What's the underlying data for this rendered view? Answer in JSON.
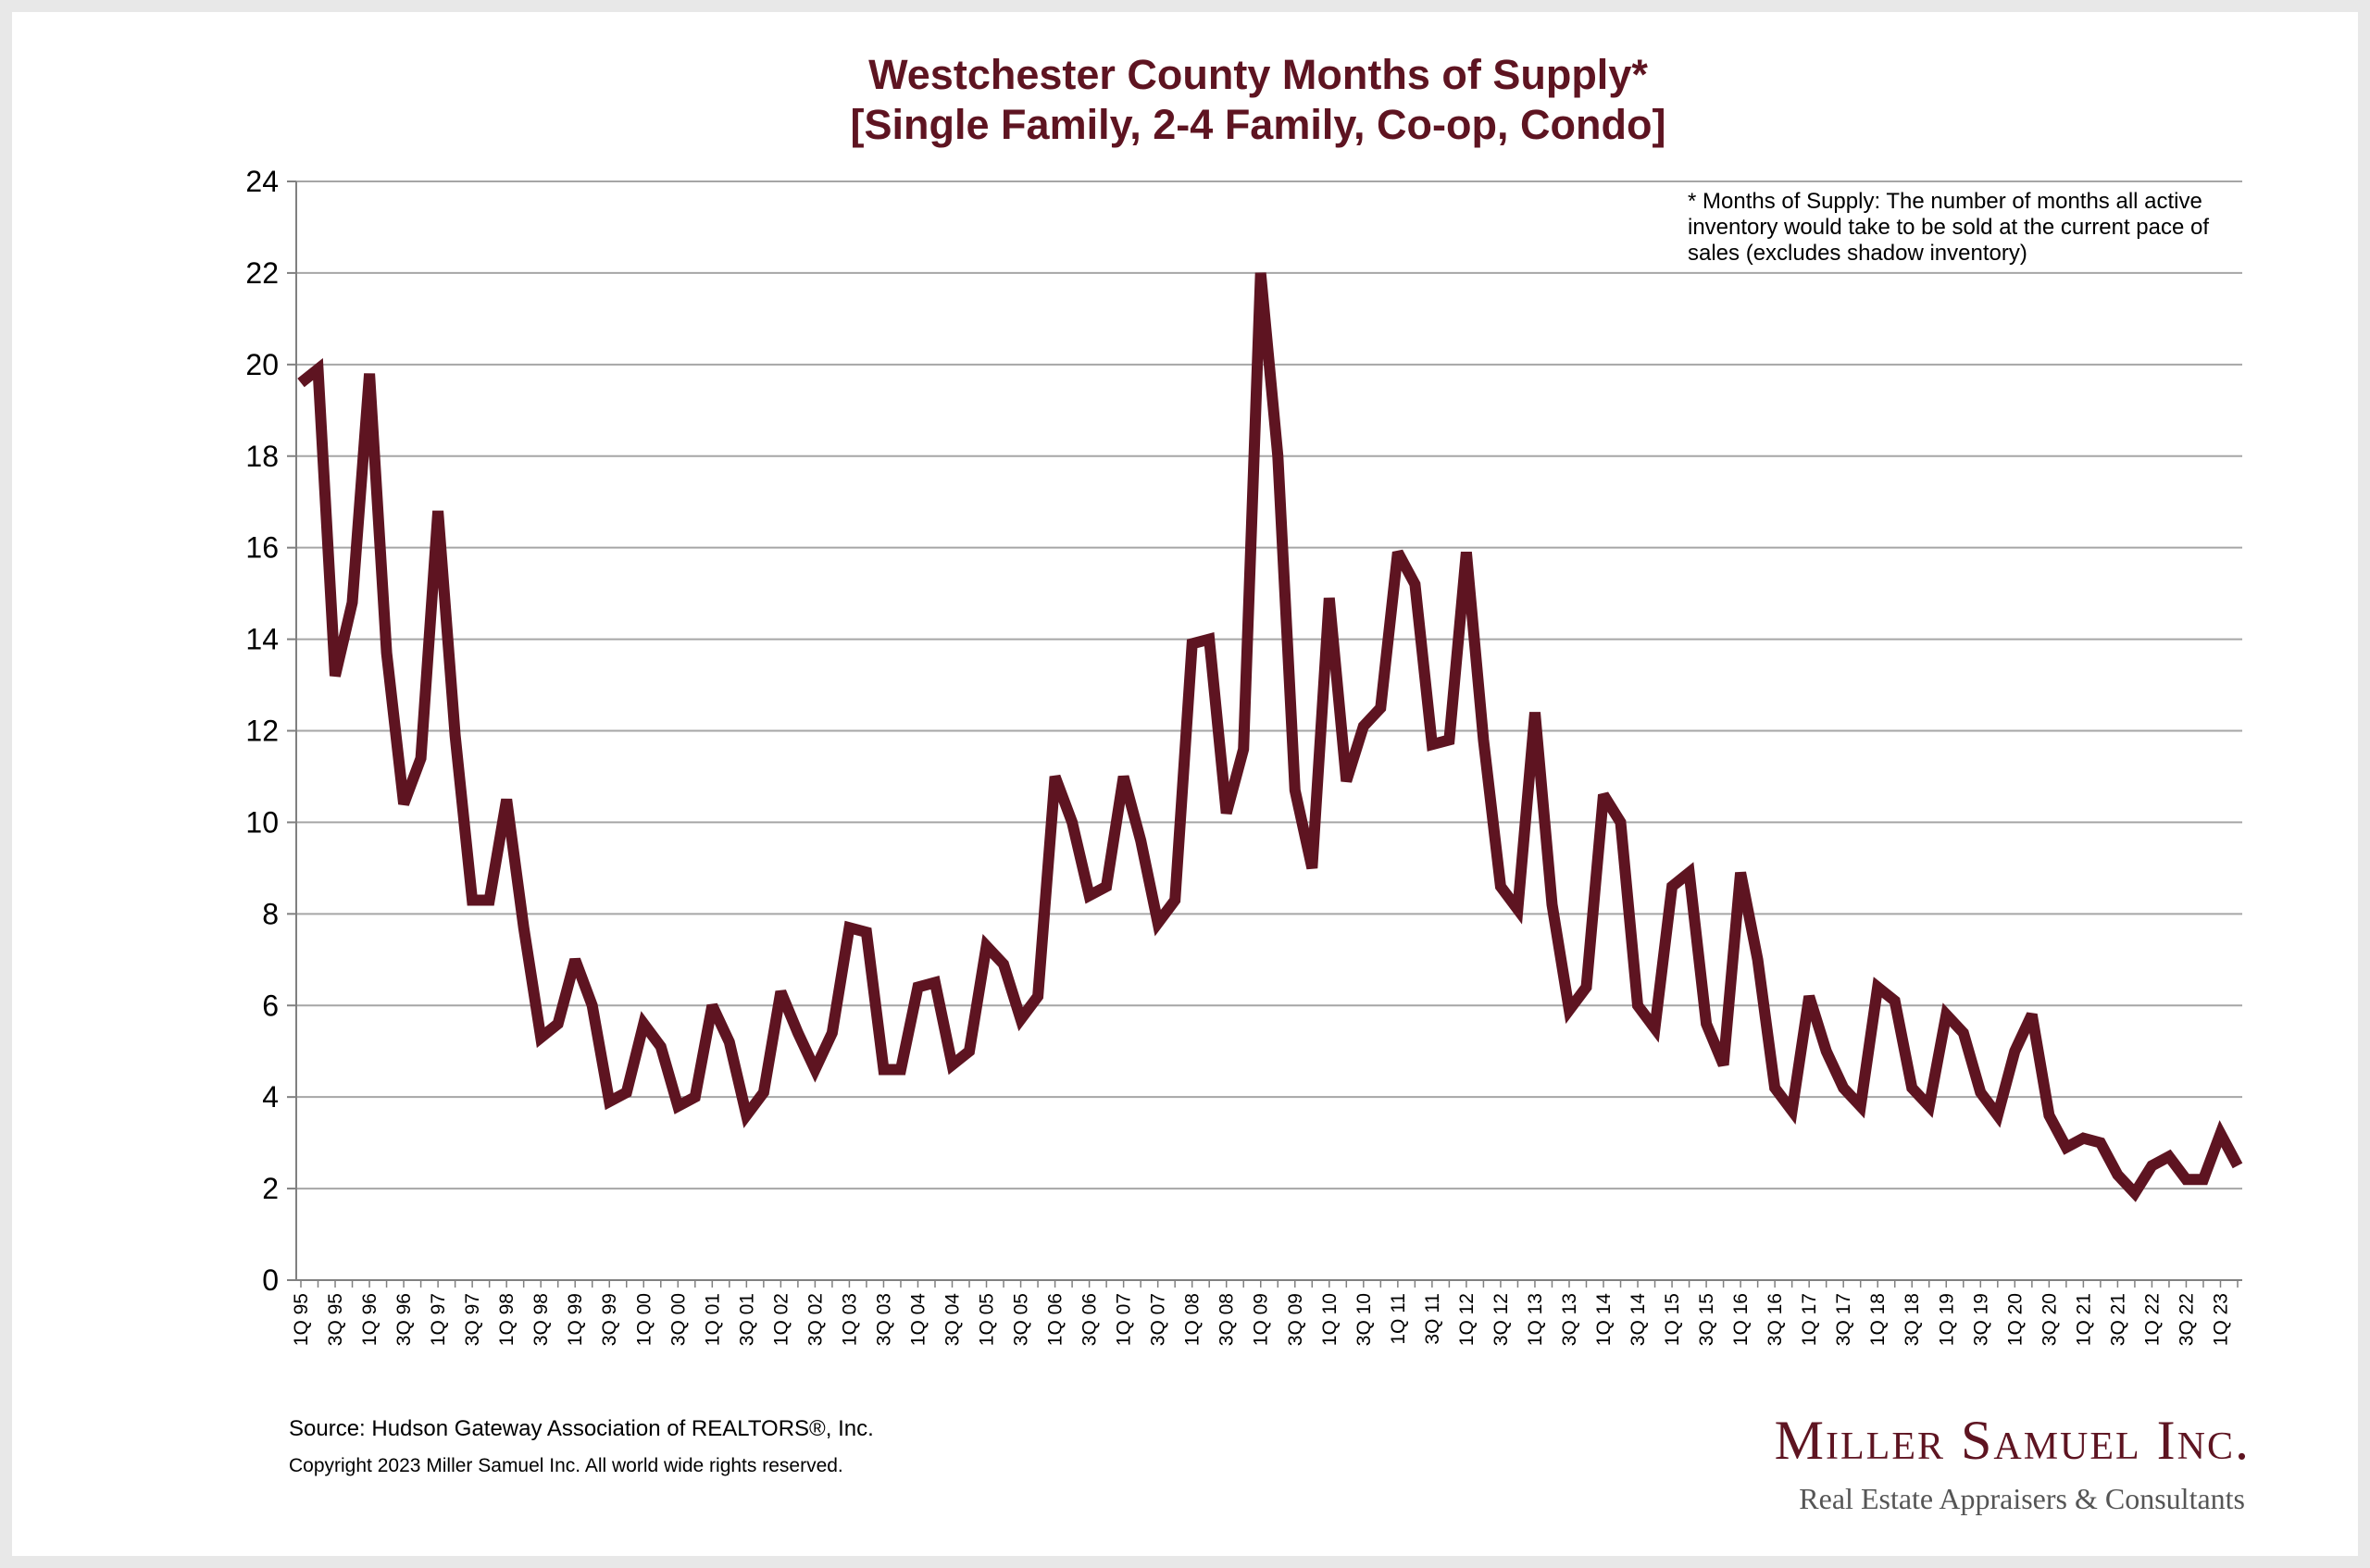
{
  "chart_data": {
    "type": "line",
    "title_line1": "Westchester County Months of Supply*",
    "title_line2": "[Single Family, 2-4 Family, Co-op, Condo]",
    "ylim": [
      0,
      24
    ],
    "yticks": [
      0,
      2,
      4,
      6,
      8,
      10,
      12,
      14,
      16,
      18,
      20,
      22,
      24
    ],
    "grid": true,
    "x": [
      "1Q 95",
      "2Q 95",
      "3Q 95",
      "4Q 95",
      "1Q 96",
      "2Q 96",
      "3Q 96",
      "4Q 96",
      "1Q 97",
      "2Q 97",
      "3Q 97",
      "4Q 97",
      "1Q 98",
      "2Q 98",
      "3Q 98",
      "4Q 98",
      "1Q 99",
      "2Q 99",
      "3Q 99",
      "4Q 99",
      "1Q 00",
      "2Q 00",
      "3Q 00",
      "4Q 00",
      "1Q 01",
      "2Q 01",
      "3Q 01",
      "4Q 01",
      "1Q 02",
      "2Q 02",
      "3Q 02",
      "4Q 02",
      "1Q 03",
      "2Q 03",
      "3Q 03",
      "4Q 03",
      "1Q 04",
      "2Q 04",
      "3Q 04",
      "4Q 04",
      "1Q 05",
      "2Q 05",
      "3Q 05",
      "4Q 05",
      "1Q 06",
      "2Q 06",
      "3Q 06",
      "4Q 06",
      "1Q 07",
      "2Q 07",
      "3Q 07",
      "4Q 07",
      "1Q 08",
      "2Q 08",
      "3Q 08",
      "4Q 08",
      "1Q 09",
      "2Q 09",
      "3Q 09",
      "4Q 09",
      "1Q 10",
      "2Q 10",
      "3Q 10",
      "4Q 10",
      "1Q 11",
      "2Q 11",
      "3Q 11",
      "4Q 11",
      "1Q 12",
      "2Q 12",
      "3Q 12",
      "4Q 12",
      "1Q 13",
      "2Q 13",
      "3Q 13",
      "4Q 13",
      "1Q 14",
      "2Q 14",
      "3Q 14",
      "4Q 14",
      "1Q 15",
      "2Q 15",
      "3Q 15",
      "4Q 15",
      "1Q 16",
      "2Q 16",
      "3Q 16",
      "4Q 16",
      "1Q 17",
      "2Q 17",
      "3Q 17",
      "4Q 17",
      "1Q 18",
      "2Q 18",
      "3Q 18",
      "4Q 18",
      "1Q 19",
      "2Q 19",
      "3Q 19",
      "4Q 19",
      "1Q 20",
      "2Q 20",
      "3Q 20",
      "4Q 20",
      "1Q 21",
      "2Q 21",
      "3Q 21",
      "4Q 21",
      "1Q 22",
      "2Q 22",
      "3Q 22",
      "4Q 22",
      "1Q 23",
      "2Q 23"
    ],
    "tick_labels": [
      "1Q 95",
      "3Q 95",
      "1Q 96",
      "3Q 96",
      "1Q 97",
      "3Q 97",
      "1Q 98",
      "3Q 98",
      "1Q 99",
      "3Q 99",
      "1Q 00",
      "3Q 00",
      "1Q 01",
      "3Q 01",
      "1Q 02",
      "3Q 02",
      "1Q 03",
      "3Q 03",
      "1Q 04",
      "3Q 04",
      "1Q 05",
      "3Q 05",
      "1Q 06",
      "3Q 06",
      "1Q 07",
      "3Q 07",
      "1Q 08",
      "3Q 08",
      "1Q 09",
      "3Q 09",
      "1Q 10",
      "3Q 10",
      "1Q 11",
      "3Q 11",
      "1Q 12",
      "3Q 12",
      "1Q 13",
      "3Q 13",
      "1Q 14",
      "3Q 14",
      "1Q 15",
      "3Q 15",
      "1Q 16",
      "3Q 16",
      "1Q 17",
      "3Q 17",
      "1Q 18",
      "3Q 18",
      "1Q 19",
      "3Q 19",
      "1Q 20",
      "3Q 20",
      "1Q 21",
      "3Q 21",
      "1Q 22",
      "3Q 22",
      "1Q 23"
    ],
    "series": [
      {
        "color": "#5e1421",
        "values": [
          19.6,
          19.9,
          13.2,
          14.8,
          19.8,
          13.7,
          10.4,
          11.4,
          16.8,
          11.9,
          8.3,
          8.3,
          10.5,
          7.7,
          5.3,
          5.6,
          7.0,
          6.0,
          3.9,
          4.1,
          5.6,
          5.1,
          3.8,
          4.0,
          6.0,
          5.2,
          3.6,
          4.1,
          6.3,
          5.4,
          4.6,
          5.4,
          7.7,
          7.6,
          4.6,
          4.6,
          6.4,
          6.5,
          4.7,
          5.0,
          7.3,
          6.9,
          5.7,
          6.2,
          11.0,
          10.0,
          8.4,
          8.6,
          11.0,
          9.6,
          7.8,
          8.3,
          13.9,
          14.0,
          10.2,
          11.6,
          22.0,
          18.0,
          10.7,
          9.0,
          14.9,
          10.9,
          12.1,
          12.5,
          15.9,
          15.2,
          11.7,
          11.8,
          15.9,
          11.8,
          8.6,
          8.1,
          12.4,
          8.2,
          5.9,
          6.4,
          10.6,
          10.0,
          6.0,
          5.5,
          8.6,
          8.9,
          5.6,
          4.7,
          8.9,
          7.0,
          4.2,
          3.7,
          6.2,
          5.0,
          4.2,
          3.8,
          6.4,
          6.1,
          4.2,
          3.8,
          5.8,
          5.4,
          4.1,
          3.6,
          5.0,
          5.8,
          3.6,
          2.9,
          3.1,
          3.0,
          2.3,
          1.9,
          2.5,
          2.7,
          2.2,
          2.2,
          3.2,
          2.5
        ]
      }
    ]
  },
  "note": {
    "line1": "* Months of Supply: The number of months all active",
    "line2": "inventory would take to be sold at the current pace of",
    "line3": "sales (excludes shadow inventory)"
  },
  "footer": {
    "source": "Source: Hudson Gateway Association of REALTORS®, Inc.",
    "copyright": "Copyright 2023 Miller Samuel Inc.  All world wide rights reserved."
  },
  "logo": {
    "name": "Miller Samuel Inc.",
    "tagline": "Real Estate Appraisers & Consultants"
  }
}
